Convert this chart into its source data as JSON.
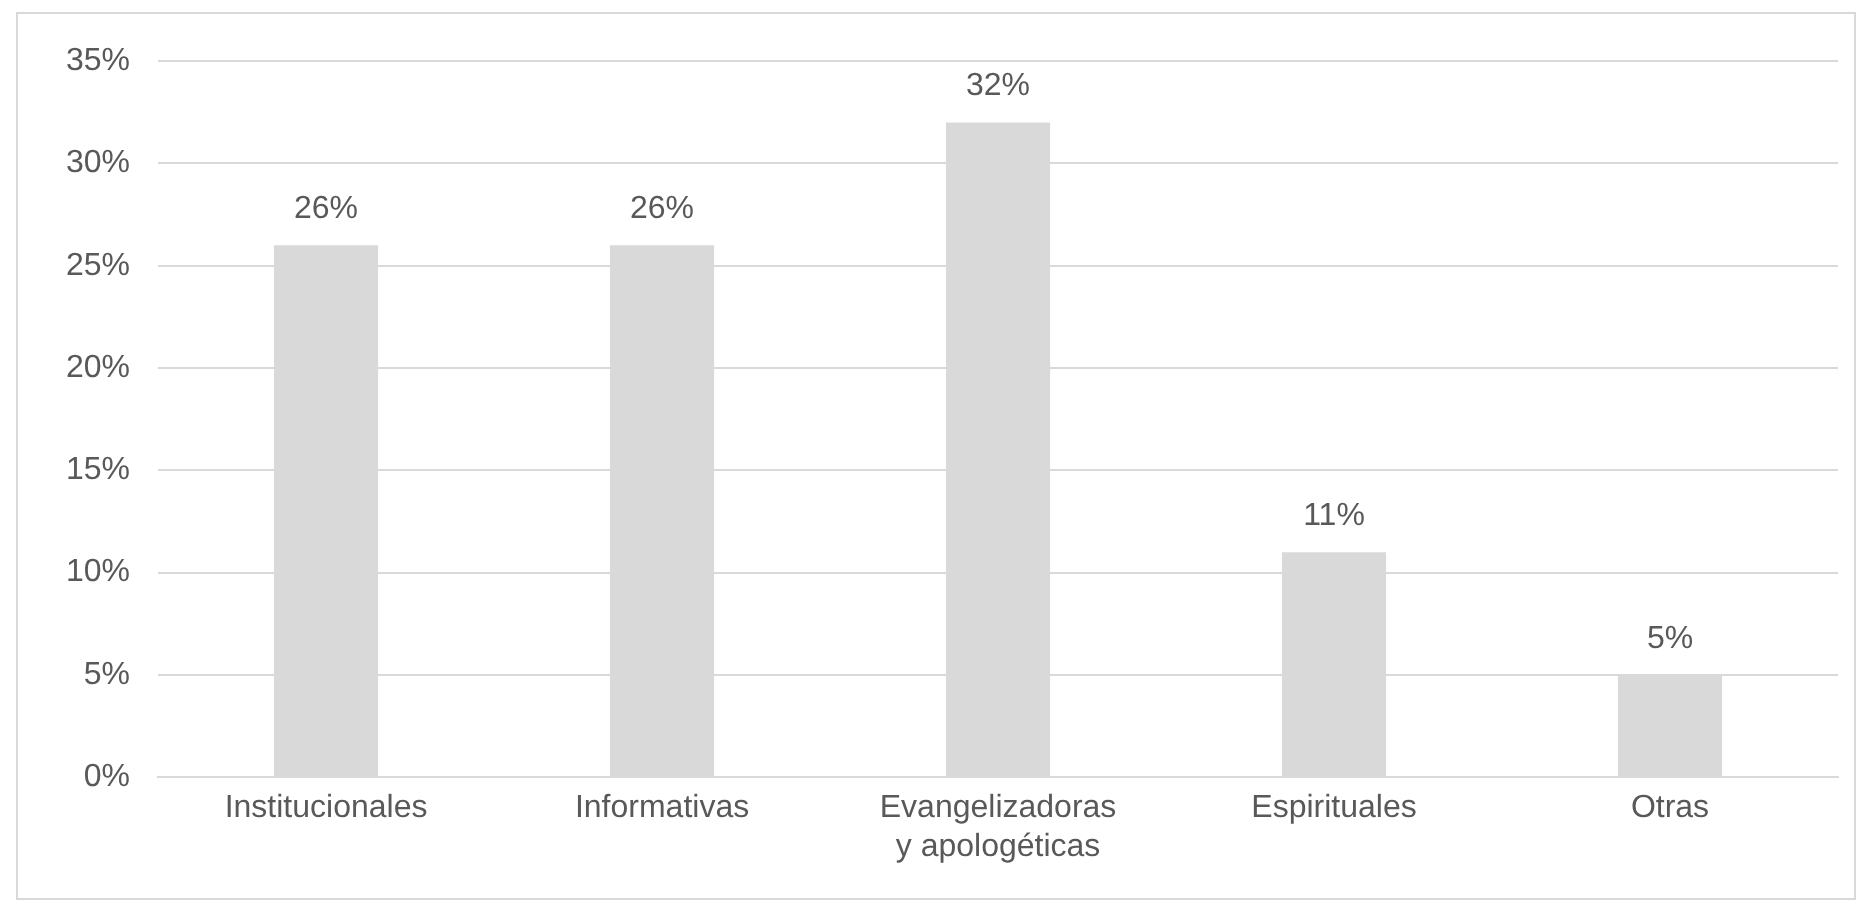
{
  "chart_data": {
    "type": "bar",
    "categories": [
      "Institucionales",
      "Informativas",
      "Evangelizadoras\ny apologéticas",
      "Espirituales",
      "Otras"
    ],
    "values": [
      26,
      26,
      32,
      11,
      5
    ],
    "value_labels": [
      "26%",
      "26%",
      "32%",
      "11%",
      "5%"
    ],
    "color": "#d9d9d9",
    "ylim": [
      0,
      35
    ],
    "yticks": [
      {
        "value": 0,
        "label": "0%"
      },
      {
        "value": 5,
        "label": "5%"
      },
      {
        "value": 10,
        "label": "10%"
      },
      {
        "value": 15,
        "label": "15%"
      },
      {
        "value": 20,
        "label": "20%"
      },
      {
        "value": 25,
        "label": "25%"
      },
      {
        "value": 30,
        "label": "30%"
      },
      {
        "value": 35,
        "label": "35%"
      }
    ],
    "grid": "y",
    "legend": false
  }
}
